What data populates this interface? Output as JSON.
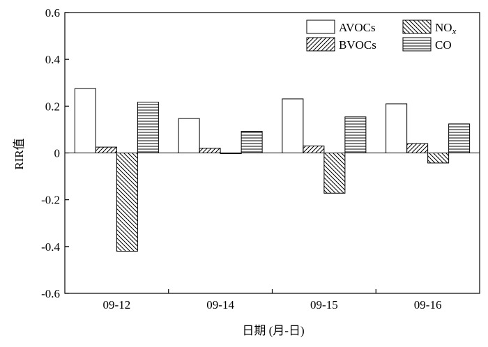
{
  "chart_data": {
    "type": "bar",
    "title": "",
    "xlabel": "日期 (月-日)",
    "ylabel": "RIR值",
    "ylim": [
      -0.6,
      0.6
    ],
    "yticks": [
      "-0.6",
      "-0.4",
      "-0.2",
      "0",
      "0.2",
      "0.4",
      "0.6"
    ],
    "ytick_values": [
      -0.6,
      -0.4,
      -0.2,
      0,
      0.2,
      0.4,
      0.6
    ],
    "categories": [
      "09-12",
      "09-14",
      "09-15",
      "09-16"
    ],
    "grid": false,
    "legend_position": "top-right",
    "series": [
      {
        "name": "AVOCs",
        "pattern": "empty",
        "values": [
          0.275,
          0.147,
          0.231,
          0.21
        ]
      },
      {
        "name": "BVOCs",
        "pattern": "diagonal-forward",
        "values": [
          0.025,
          0.02,
          0.03,
          0.04
        ]
      },
      {
        "name": "NO",
        "name_subscript": "x",
        "pattern": "diagonal-back",
        "values": [
          -0.42,
          -0.003,
          -0.172,
          -0.043
        ]
      },
      {
        "name": "CO",
        "pattern": "horizontal",
        "values": [
          0.217,
          0.092,
          0.154,
          0.124
        ]
      }
    ]
  }
}
